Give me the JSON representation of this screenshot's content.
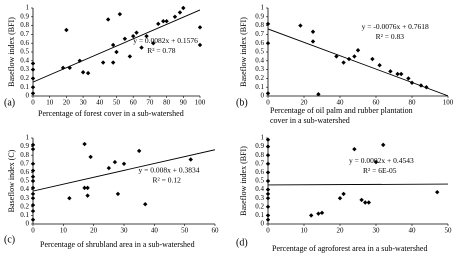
{
  "chart_data": [
    {
      "type": "scatter",
      "panel": "(a)",
      "y_label": "Baseflow index (BFI)",
      "x_label": [
        "Percentage of forest cover in a sub-watershed"
      ],
      "x": [
        0,
        0,
        0,
        0,
        0,
        18,
        20,
        22,
        28,
        30,
        33,
        42,
        45,
        48,
        48,
        50,
        52,
        55,
        58,
        60,
        62,
        65,
        68,
        72,
        75,
        78,
        80,
        85,
        88,
        90,
        100,
        100
      ],
      "y": [
        0.37,
        0.3,
        0.2,
        0.1,
        0.03,
        0.32,
        0.75,
        0.32,
        0.4,
        0.27,
        0.26,
        0.38,
        0.87,
        0.58,
        0.38,
        0.5,
        0.93,
        0.65,
        0.45,
        0.68,
        0.72,
        0.55,
        0.68,
        0.6,
        0.82,
        0.85,
        0.85,
        0.9,
        0.95,
        1.0,
        0.78,
        0.58
      ],
      "color": "#000000",
      "xlim": [
        0,
        100
      ],
      "xticks": [
        0,
        10,
        20,
        30,
        40,
        50,
        60,
        70,
        80,
        90,
        100
      ],
      "ylim": [
        0,
        1
      ],
      "yticks": [
        0,
        0.1,
        0.2,
        0.3,
        0.4,
        0.5,
        0.6,
        0.7,
        0.8,
        0.9,
        1
      ],
      "trendline": {
        "slope": 0.0082,
        "intercept": 0.1576,
        "label": "y = 0.0082x + 0.1576"
      },
      "r2_label": "R² = 0.78"
    },
    {
      "type": "scatter",
      "panel": "(b)",
      "y_label": "Baseflow index (BFI)",
      "x_label": [
        "Percentage of oil palm and rubber plantation",
        "cover in a sub-watershed"
      ],
      "x": [
        0,
        0,
        0,
        18,
        25,
        25,
        28,
        38,
        42,
        45,
        48,
        50,
        58,
        62,
        68,
        72,
        74,
        78,
        80,
        85,
        88
      ],
      "y": [
        0.82,
        0.6,
        0.03,
        0.8,
        0.62,
        0.73,
        0.02,
        0.45,
        0.38,
        0.42,
        0.45,
        0.52,
        0.42,
        0.35,
        0.28,
        0.25,
        0.25,
        0.2,
        0.15,
        0.12,
        0.1
      ],
      "color": "#000000",
      "xlim": [
        0,
        100
      ],
      "xticks": [
        0,
        20,
        40,
        60,
        80,
        100
      ],
      "ylim": [
        0,
        1
      ],
      "yticks": [
        0,
        0.1,
        0.2,
        0.3,
        0.4,
        0.5,
        0.6,
        0.7,
        0.8,
        0.9,
        1
      ],
      "trendline": {
        "slope": -0.0076,
        "intercept": 0.7618,
        "label": "y = -0.0076x + 0.7618"
      },
      "r2_label": "R² = 0.83"
    },
    {
      "type": "scatter",
      "panel": "(c)",
      "y_label": "Baseflow index (C)",
      "x_label": [
        "Percentage of shrubland area  in a sub-watershed"
      ],
      "x": [
        0,
        0,
        0,
        0,
        0,
        0,
        0,
        0,
        0,
        0,
        0,
        0,
        12,
        17,
        17,
        18,
        18,
        19,
        25,
        27,
        28,
        30,
        35,
        37,
        52
      ],
      "y": [
        0.92,
        0.87,
        0.7,
        0.62,
        0.55,
        0.5,
        0.42,
        0.35,
        0.3,
        0.22,
        0.15,
        0.05,
        0.3,
        0.93,
        0.42,
        0.33,
        0.42,
        0.78,
        0.65,
        0.72,
        0.35,
        0.7,
        0.85,
        0.23,
        0.75
      ],
      "color": "#000000",
      "xlim": [
        0,
        60
      ],
      "xticks": [
        0,
        10,
        20,
        30,
        40,
        50,
        60
      ],
      "ylim": [
        0,
        1
      ],
      "yticks": [
        0,
        0.1,
        0.2,
        0.3,
        0.4,
        0.5,
        0.6,
        0.7,
        0.8,
        0.9,
        1
      ],
      "trendline": {
        "slope": 0.008,
        "intercept": 0.3834,
        "label": "y = 0.008x + 0.3834"
      },
      "r2_label": "R² = 0.12"
    },
    {
      "type": "scatter",
      "panel": "(d)",
      "y_label": "Baseflow index (BFI)",
      "x_label": [
        "Percentage of agroforest area in a sub-watershed"
      ],
      "x": [
        0,
        0,
        0,
        0,
        0,
        0,
        0,
        0,
        0,
        0,
        0,
        0,
        12,
        14,
        15,
        20,
        21,
        24,
        26,
        27,
        28,
        30,
        32,
        47
      ],
      "y": [
        0.98,
        0.9,
        0.8,
        0.7,
        0.6,
        0.5,
        0.4,
        0.35,
        0.3,
        0.2,
        0.1,
        0.05,
        0.1,
        0.12,
        0.13,
        0.3,
        0.35,
        0.87,
        0.28,
        0.25,
        0.25,
        0.72,
        0.92,
        0.37
      ],
      "color": "#000000",
      "xlim": [
        0,
        50
      ],
      "xticks": [
        0,
        10,
        20,
        30,
        40,
        50
      ],
      "ylim": [
        0,
        1
      ],
      "yticks": [
        0,
        0.1,
        0.2,
        0.3,
        0.4,
        0.5,
        0.6,
        0.7,
        0.8,
        0.9,
        1
      ],
      "trendline": {
        "slope": 0.0002,
        "intercept": 0.4543,
        "label": "y = 0.0002x + 0.4543"
      },
      "r2_label": "R² = 6E-05"
    }
  ]
}
